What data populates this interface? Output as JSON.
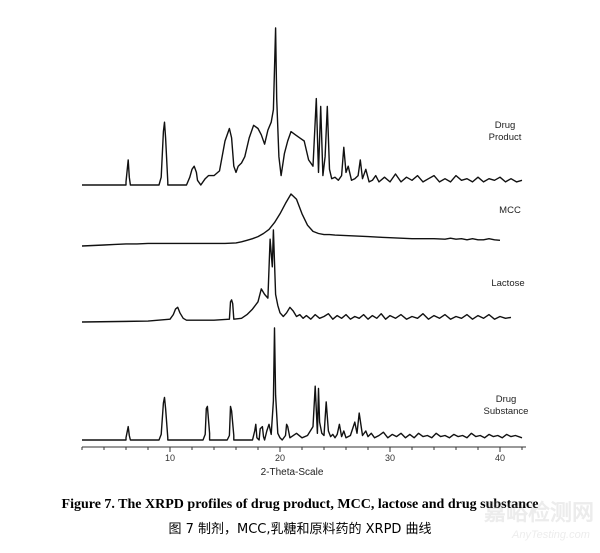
{
  "chart_data": {
    "type": "line",
    "title": "",
    "xlabel": "2-Theta-Scale",
    "ylabel": "",
    "xlim": [
      2,
      42
    ],
    "xticks": [
      "10",
      "20",
      "30",
      "40"
    ],
    "grid": false,
    "legend": "none",
    "series": [
      {
        "name": "Drug Product",
        "label_lines": [
          "Drug",
          "Product"
        ],
        "x": [
          2.0,
          6.0,
          6.0,
          6.2,
          6.3,
          6.4,
          6.6,
          6.6,
          9.0,
          9.2,
          9.4,
          9.5,
          9.6,
          9.8,
          9.8,
          10.0,
          11.5,
          11.8,
          12.0,
          12.2,
          12.4,
          12.5,
          12.8,
          13.2,
          13.5,
          14.0,
          14.5,
          15.0,
          15.4,
          15.6,
          15.8,
          16.0,
          16.2,
          16.5,
          16.8,
          17.2,
          17.6,
          18.0,
          18.3,
          18.6,
          18.9,
          19.2,
          19.4,
          19.6,
          19.7,
          19.9,
          20.1,
          20.4,
          20.7,
          21.0,
          21.4,
          21.8,
          22.2,
          22.6,
          23.0,
          23.3,
          23.5,
          23.7,
          23.9,
          24.1,
          24.3,
          24.5,
          24.7,
          25.0,
          25.3,
          25.6,
          25.8,
          26.0,
          26.2,
          26.5,
          26.8,
          27.1,
          27.3,
          27.5,
          27.8,
          28.1,
          28.4,
          28.7,
          29.0,
          29.5,
          30.0,
          30.5,
          31.0,
          31.5,
          32.0,
          32.5,
          33.0,
          33.5,
          34.0,
          34.5,
          35.0,
          35.5,
          36.0,
          36.5,
          37.0,
          37.5,
          38.0,
          38.5,
          39.0,
          39.5,
          40.0,
          40.5,
          41.0,
          41.5,
          42.0
        ],
        "y": [
          0.0,
          0.0,
          0.02,
          0.16,
          0.05,
          0.0,
          0.0,
          0.0,
          0.0,
          0.05,
          0.34,
          0.4,
          0.3,
          0.02,
          0.0,
          0.0,
          0.0,
          0.05,
          0.1,
          0.12,
          0.08,
          0.03,
          0.0,
          0.04,
          0.06,
          0.06,
          0.09,
          0.28,
          0.36,
          0.3,
          0.12,
          0.08,
          0.12,
          0.14,
          0.18,
          0.3,
          0.38,
          0.36,
          0.32,
          0.26,
          0.35,
          0.4,
          0.48,
          1.0,
          0.55,
          0.18,
          0.06,
          0.2,
          0.28,
          0.34,
          0.32,
          0.3,
          0.28,
          0.16,
          0.12,
          0.55,
          0.08,
          0.5,
          0.06,
          0.18,
          0.5,
          0.1,
          0.04,
          0.05,
          0.03,
          0.06,
          0.24,
          0.08,
          0.12,
          0.03,
          0.04,
          0.06,
          0.16,
          0.04,
          0.1,
          0.02,
          0.03,
          0.06,
          0.02,
          0.05,
          0.02,
          0.07,
          0.02,
          0.05,
          0.03,
          0.06,
          0.02,
          0.04,
          0.06,
          0.02,
          0.04,
          0.02,
          0.06,
          0.03,
          0.04,
          0.02,
          0.05,
          0.02,
          0.04,
          0.03,
          0.05,
          0.02,
          0.04,
          0.02,
          0.03
        ]
      },
      {
        "name": "MCC",
        "label_lines": [
          "MCC"
        ],
        "x": [
          2.0,
          3.0,
          4.0,
          5.0,
          6.0,
          7.0,
          8.0,
          9.0,
          10.0,
          11.0,
          12.0,
          13.0,
          14.0,
          15.0,
          16.0,
          16.5,
          17.0,
          17.5,
          18.0,
          18.5,
          19.0,
          19.5,
          20.0,
          20.5,
          21.0,
          21.5,
          22.0,
          22.5,
          23.0,
          23.5,
          24.0,
          24.5,
          25.0,
          26.0,
          27.0,
          28.0,
          29.0,
          30.0,
          31.0,
          32.0,
          33.0,
          34.0,
          35.0,
          35.5,
          36.0,
          36.5,
          37.0,
          37.5,
          38.0,
          38.5,
          39.0,
          39.5,
          40.0
        ],
        "y": [
          0.0,
          0.01,
          0.02,
          0.03,
          0.04,
          0.04,
          0.05,
          0.05,
          0.05,
          0.05,
          0.05,
          0.05,
          0.05,
          0.05,
          0.06,
          0.08,
          0.11,
          0.14,
          0.18,
          0.24,
          0.32,
          0.45,
          0.62,
          0.82,
          1.0,
          0.9,
          0.62,
          0.4,
          0.28,
          0.24,
          0.22,
          0.22,
          0.21,
          0.2,
          0.19,
          0.18,
          0.17,
          0.16,
          0.15,
          0.14,
          0.14,
          0.14,
          0.13,
          0.15,
          0.13,
          0.14,
          0.12,
          0.14,
          0.12,
          0.12,
          0.14,
          0.12,
          0.11
        ]
      },
      {
        "name": "Lactose",
        "label_lines": [
          "Lactose"
        ],
        "x": [
          2.0,
          8.0,
          10.0,
          10.3,
          10.5,
          10.7,
          10.9,
          11.2,
          11.5,
          12.0,
          13.0,
          14.0,
          15.4,
          15.5,
          15.6,
          15.7,
          15.8,
          16.5,
          17.0,
          17.5,
          18.0,
          18.3,
          18.6,
          18.9,
          19.1,
          19.3,
          19.4,
          19.5,
          19.6,
          19.8,
          20.0,
          20.3,
          20.6,
          20.9,
          21.2,
          21.5,
          21.8,
          22.1,
          22.4,
          22.8,
          23.2,
          23.6,
          24.0,
          24.4,
          24.8,
          25.2,
          25.6,
          26.0,
          26.4,
          26.8,
          27.2,
          27.6,
          28.0,
          28.4,
          28.8,
          29.2,
          29.6,
          30.0,
          30.5,
          31.0,
          31.5,
          32.0,
          32.5,
          33.0,
          33.5,
          34.0,
          34.5,
          35.0,
          35.5,
          36.0,
          36.5,
          37.0,
          37.5,
          38.0,
          38.5,
          39.0,
          39.5,
          40.0,
          40.5,
          41.0
        ],
        "y": [
          0.0,
          0.01,
          0.03,
          0.08,
          0.14,
          0.16,
          0.1,
          0.04,
          0.02,
          0.02,
          0.02,
          0.02,
          0.03,
          0.22,
          0.24,
          0.2,
          0.03,
          0.04,
          0.08,
          0.14,
          0.22,
          0.36,
          0.3,
          0.26,
          0.9,
          0.6,
          1.0,
          0.65,
          0.3,
          0.18,
          0.1,
          0.06,
          0.1,
          0.16,
          0.12,
          0.06,
          0.08,
          0.04,
          0.07,
          0.03,
          0.08,
          0.04,
          0.06,
          0.09,
          0.03,
          0.07,
          0.04,
          0.08,
          0.03,
          0.06,
          0.04,
          0.08,
          0.03,
          0.07,
          0.04,
          0.09,
          0.03,
          0.07,
          0.04,
          0.08,
          0.03,
          0.06,
          0.04,
          0.09,
          0.03,
          0.07,
          0.04,
          0.08,
          0.03,
          0.06,
          0.04,
          0.08,
          0.03,
          0.07,
          0.04,
          0.08,
          0.03,
          0.06,
          0.04,
          0.05
        ]
      },
      {
        "name": "Drug Substance",
        "label_lines": [
          "Drug",
          "Substance"
        ],
        "x": [
          2.0,
          6.0,
          6.0,
          6.2,
          6.3,
          6.4,
          6.6,
          6.6,
          9.0,
          9.2,
          9.4,
          9.5,
          9.6,
          9.8,
          9.8,
          13.0,
          13.2,
          13.3,
          13.4,
          13.6,
          13.6,
          15.2,
          15.4,
          15.5,
          15.6,
          15.8,
          15.8,
          17.5,
          17.7,
          17.8,
          17.9,
          18.1,
          18.2,
          18.4,
          18.5,
          18.6,
          18.8,
          19.0,
          19.2,
          19.4,
          19.5,
          19.6,
          19.8,
          20.0,
          20.2,
          20.5,
          20.6,
          20.7,
          20.9,
          21.5,
          22.0,
          22.5,
          23.0,
          23.2,
          23.4,
          23.5,
          23.6,
          23.8,
          24.0,
          24.2,
          24.4,
          24.6,
          24.8,
          25.0,
          25.2,
          25.4,
          25.6,
          25.8,
          26.0,
          26.4,
          26.8,
          27.0,
          27.2,
          27.5,
          27.8,
          28.0,
          28.3,
          28.6,
          29.0,
          29.4,
          29.8,
          30.2,
          30.6,
          31.0,
          31.4,
          31.8,
          32.2,
          32.6,
          33.0,
          33.4,
          33.8,
          34.2,
          34.6,
          35.0,
          35.4,
          35.8,
          36.2,
          36.6,
          37.0,
          37.4,
          37.8,
          38.2,
          38.6,
          39.0,
          39.4,
          39.8,
          40.2,
          40.6,
          41.0,
          41.4,
          42.0
        ],
        "y": [
          0.0,
          0.0,
          0.02,
          0.12,
          0.04,
          0.0,
          0.0,
          0.0,
          0.0,
          0.05,
          0.33,
          0.38,
          0.28,
          0.02,
          0.0,
          0.0,
          0.05,
          0.28,
          0.3,
          0.06,
          0.0,
          0.0,
          0.04,
          0.3,
          0.26,
          0.04,
          0.0,
          0.0,
          0.08,
          0.14,
          0.02,
          0.0,
          0.1,
          0.12,
          0.03,
          0.0,
          0.08,
          0.14,
          0.05,
          0.35,
          1.0,
          0.4,
          0.06,
          0.02,
          0.0,
          0.04,
          0.14,
          0.12,
          0.02,
          0.06,
          0.02,
          0.04,
          0.12,
          0.48,
          0.06,
          0.46,
          0.16,
          0.06,
          0.04,
          0.34,
          0.08,
          0.03,
          0.05,
          0.02,
          0.05,
          0.14,
          0.03,
          0.08,
          0.02,
          0.04,
          0.16,
          0.06,
          0.24,
          0.04,
          0.08,
          0.03,
          0.06,
          0.02,
          0.04,
          0.07,
          0.02,
          0.05,
          0.03,
          0.06,
          0.02,
          0.05,
          0.02,
          0.06,
          0.03,
          0.04,
          0.02,
          0.06,
          0.03,
          0.04,
          0.02,
          0.05,
          0.03,
          0.04,
          0.02,
          0.06,
          0.03,
          0.04,
          0.02,
          0.05,
          0.03,
          0.04,
          0.02,
          0.05,
          0.03,
          0.04,
          0.02
        ]
      }
    ]
  },
  "caption": {
    "english": "Figure 7. The XRPD profiles of drug product, MCC, lactose and drug substance",
    "chinese": "图 7  制剂，MCC,乳糖和原料药的 XRPD 曲线"
  },
  "watermark": {
    "line1": "嘉峪检测网",
    "line2": "AnyTesting.com"
  },
  "colors": {
    "trace": "#111111",
    "axis": "#333333",
    "caption": "#000000",
    "watermark": "#999999"
  }
}
